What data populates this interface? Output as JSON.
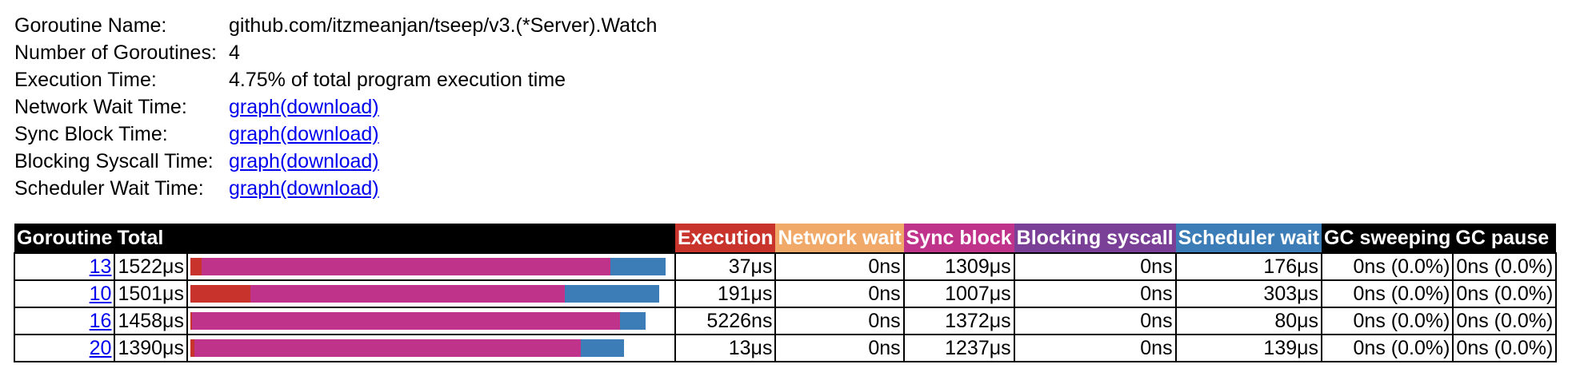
{
  "info": {
    "name_label": "Goroutine Name:",
    "name_value": "github.com/itzmeanjan/tseep/v3.(*Server).Watch",
    "count_label": "Number of Goroutines:",
    "count_value": "4",
    "exec_label": "Execution Time:",
    "exec_value": "4.75% of total program execution time",
    "net_label": "Network Wait Time:",
    "sync_label": "Sync Block Time:",
    "syscall_label": "Blocking Syscall Time:",
    "sched_label": "Scheduler Wait Time:",
    "graph_link": "graph",
    "download_link": "(download)"
  },
  "table": {
    "headers": {
      "goroutine": "Goroutine",
      "total": "Total",
      "execution": "Execution",
      "network_wait": "Network wait",
      "sync_block": "Sync block",
      "blocking_syscall": "Blocking syscall",
      "scheduler_wait": "Scheduler wait",
      "gc_sweeping": "GC sweeping",
      "gc_pause": "GC pause"
    },
    "colors": {
      "execution": "#c8342c",
      "network_wait": "#f0a968",
      "sync_block": "#c0338b",
      "blocking_syscall": "#7a3f96",
      "scheduler_wait": "#3d7db7"
    },
    "rows": [
      {
        "id": "13",
        "total": "1522μs",
        "execution": "37μs",
        "network_wait": "0ns",
        "sync_block": "1309μs",
        "blocking_syscall": "0ns",
        "scheduler_wait": "176μs",
        "gc_sweeping": "0ns (0.0%)",
        "gc_pause": "0ns (0.0%)",
        "bar": {
          "execution": 37,
          "sync_block": 1309,
          "scheduler_wait": 176
        }
      },
      {
        "id": "10",
        "total": "1501μs",
        "execution": "191μs",
        "network_wait": "0ns",
        "sync_block": "1007μs",
        "blocking_syscall": "0ns",
        "scheduler_wait": "303μs",
        "gc_sweeping": "0ns (0.0%)",
        "gc_pause": "0ns (0.0%)",
        "bar": {
          "execution": 191,
          "sync_block": 1007,
          "scheduler_wait": 303
        }
      },
      {
        "id": "16",
        "total": "1458μs",
        "execution": "5226ns",
        "network_wait": "0ns",
        "sync_block": "1372μs",
        "blocking_syscall": "0ns",
        "scheduler_wait": "80μs",
        "gc_sweeping": "0ns (0.0%)",
        "gc_pause": "0ns (0.0%)",
        "bar": {
          "execution": 5.226,
          "sync_block": 1372,
          "scheduler_wait": 80
        }
      },
      {
        "id": "20",
        "total": "1390μs",
        "execution": "13μs",
        "network_wait": "0ns",
        "sync_block": "1237μs",
        "blocking_syscall": "0ns",
        "scheduler_wait": "139μs",
        "gc_sweeping": "0ns (0.0%)",
        "gc_pause": "0ns (0.0%)",
        "bar": {
          "execution": 13,
          "sync_block": 1237,
          "scheduler_wait": 139
        }
      }
    ],
    "bar_max_total": 1522
  }
}
